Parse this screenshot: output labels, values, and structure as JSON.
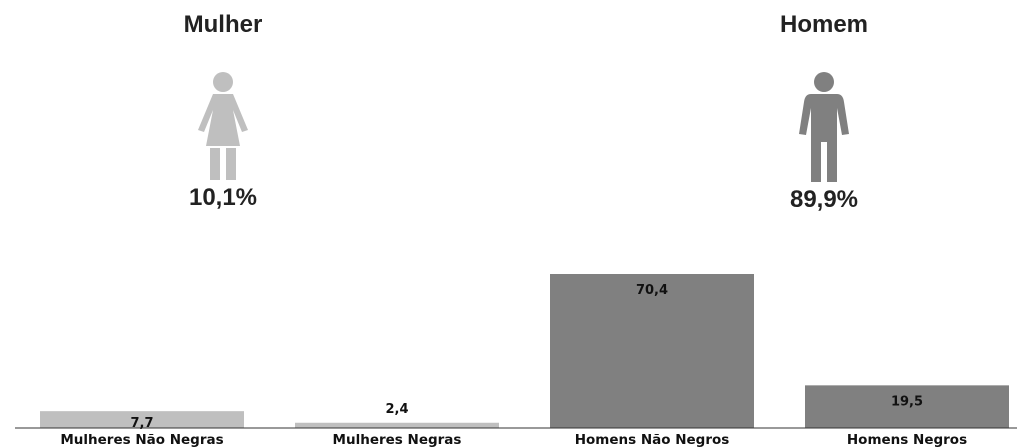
{
  "gender_panels": {
    "female": {
      "title": "Mulher",
      "percent": "10,1%",
      "icon": "woman-icon",
      "color": "#bfbfbf"
    },
    "male": {
      "title": "Homem",
      "percent": "89,9%",
      "icon": "man-icon",
      "color": "#808080"
    }
  },
  "chart_data": {
    "type": "bar",
    "categories": [
      "Mulheres Não Negras",
      "Mulheres Negras",
      "Homens Não Negros",
      "Homens Negros"
    ],
    "values": [
      7.7,
      2.4,
      70.4,
      19.5
    ],
    "value_labels": [
      "7,7",
      "2,4",
      "70,4",
      "19,5"
    ],
    "colors": [
      "#bfbfbf",
      "#bfbfbf",
      "#808080",
      "#808080"
    ],
    "ylim": [
      0,
      80
    ],
    "grid": false,
    "xlabel": "",
    "ylabel": ""
  }
}
